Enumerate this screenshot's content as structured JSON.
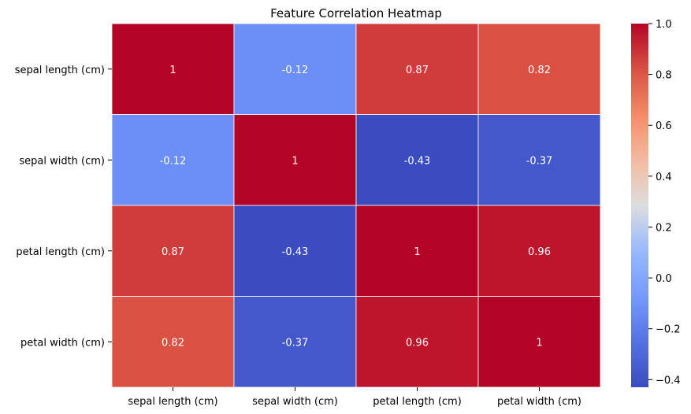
{
  "chart_data": {
    "type": "heatmap",
    "title": "Feature Correlation Heatmap",
    "rows": [
      "sepal length (cm)",
      "sepal width (cm)",
      "petal length (cm)",
      "petal width (cm)"
    ],
    "columns": [
      "sepal length (cm)",
      "sepal width (cm)",
      "petal length (cm)",
      "petal width (cm)"
    ],
    "values": [
      [
        1,
        -0.12,
        0.87,
        0.82
      ],
      [
        -0.12,
        1,
        -0.43,
        -0.37
      ],
      [
        0.87,
        -0.43,
        1,
        0.96
      ],
      [
        0.82,
        -0.37,
        0.96,
        1
      ]
    ],
    "cell_labels": [
      [
        "1",
        "-0.12",
        "0.87",
        "0.82"
      ],
      [
        "-0.12",
        "1",
        "-0.43",
        "-0.37"
      ],
      [
        "0.87",
        "-0.43",
        "1",
        "0.96"
      ],
      [
        "0.82",
        "-0.37",
        "0.96",
        "1"
      ]
    ],
    "colormap": "coolwarm",
    "vmin": -0.43,
    "vmax": 1.0,
    "colorbar_ticks": [
      {
        "value": 1.0,
        "label": "1.0"
      },
      {
        "value": 0.8,
        "label": "0.8"
      },
      {
        "value": 0.6,
        "label": "0.6"
      },
      {
        "value": 0.4,
        "label": "0.4"
      },
      {
        "value": 0.2,
        "label": "0.2"
      },
      {
        "value": 0.0,
        "label": "0.0"
      },
      {
        "value": -0.2,
        "label": "−0.2"
      },
      {
        "value": -0.4,
        "label": "−0.4"
      }
    ],
    "cell_border_color": "#ffffff",
    "colors": {
      "low": "#3b4cc0",
      "mid": "#dddddd",
      "high": "#b40426"
    }
  }
}
